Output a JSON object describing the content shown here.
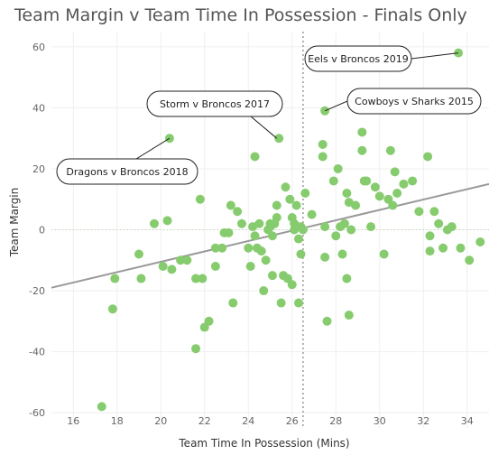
{
  "chart_data": {
    "type": "scatter",
    "title": "Team Margin v Team Time In Possession - Finals Only",
    "xlabel": "Team Time In Possession (Mins)",
    "ylabel": "Team Margin",
    "xlim": [
      15,
      35
    ],
    "ylim": [
      -65,
      65
    ],
    "xticks": [
      16,
      18,
      20,
      22,
      24,
      26,
      28,
      30,
      32,
      34
    ],
    "yticks": [
      -60,
      -40,
      -20,
      0,
      20,
      40,
      60
    ],
    "grid": true,
    "point_color": "#86cc6e",
    "trend_color": "#999999",
    "reference_line": {
      "x": 26.5,
      "style": "dotted",
      "color": "#999999"
    },
    "zero_line": {
      "y": 0,
      "style": "dotted",
      "color": "#b7d6a8"
    },
    "trendline": {
      "x": [
        15,
        35
      ],
      "y": [
        -19,
        15
      ]
    },
    "annotations": [
      {
        "label": "Eels v Broncos 2019",
        "x": 33.6,
        "y": 58
      },
      {
        "label": "Storm v Broncos 2017",
        "x": 25.3,
        "y": 30
      },
      {
        "label": "Cowboys v Sharks 2015",
        "x": 27.5,
        "y": 39
      },
      {
        "label": "Dragons v Broncos 2018",
        "x": 20.4,
        "y": 30
      }
    ],
    "points": [
      [
        17.3,
        -58
      ],
      [
        17.8,
        -26
      ],
      [
        17.9,
        -16
      ],
      [
        19.0,
        -8
      ],
      [
        19.1,
        -16
      ],
      [
        19.7,
        2
      ],
      [
        20.1,
        -12
      ],
      [
        20.3,
        3
      ],
      [
        20.5,
        -13
      ],
      [
        20.9,
        -10
      ],
      [
        21.2,
        -10
      ],
      [
        21.6,
        -16
      ],
      [
        21.6,
        -39
      ],
      [
        21.8,
        10
      ],
      [
        21.9,
        -16
      ],
      [
        22.0,
        -32
      ],
      [
        22.2,
        -30
      ],
      [
        22.5,
        -12
      ],
      [
        22.5,
        -6
      ],
      [
        22.8,
        -6
      ],
      [
        22.9,
        -1
      ],
      [
        23.1,
        -1
      ],
      [
        23.2,
        8
      ],
      [
        23.3,
        -24
      ],
      [
        23.5,
        6
      ],
      [
        23.7,
        2
      ],
      [
        24.0,
        -6
      ],
      [
        24.1,
        -12
      ],
      [
        24.2,
        1
      ],
      [
        24.3,
        24
      ],
      [
        24.3,
        -2
      ],
      [
        24.4,
        -6
      ],
      [
        24.5,
        2
      ],
      [
        24.6,
        -7
      ],
      [
        24.7,
        -20
      ],
      [
        24.8,
        -10
      ],
      [
        24.9,
        0
      ],
      [
        25.0,
        1
      ],
      [
        25.0,
        2
      ],
      [
        25.1,
        -2
      ],
      [
        25.1,
        -15
      ],
      [
        25.2,
        2
      ],
      [
        25.3,
        4
      ],
      [
        25.3,
        8
      ],
      [
        25.4,
        30
      ],
      [
        25.5,
        -24
      ],
      [
        25.6,
        -15
      ],
      [
        25.7,
        14
      ],
      [
        25.8,
        -16
      ],
      [
        25.9,
        10
      ],
      [
        26.0,
        4
      ],
      [
        26.0,
        -18
      ],
      [
        26.1,
        2
      ],
      [
        26.1,
        0
      ],
      [
        26.2,
        8
      ],
      [
        26.3,
        -3
      ],
      [
        26.3,
        -24
      ],
      [
        26.4,
        1
      ],
      [
        26.4,
        -8
      ],
      [
        26.5,
        0
      ],
      [
        26.6,
        12
      ],
      [
        26.9,
        5
      ],
      [
        27.4,
        28
      ],
      [
        27.4,
        24
      ],
      [
        27.5,
        1
      ],
      [
        27.5,
        -9
      ],
      [
        27.6,
        -30
      ],
      [
        27.9,
        16
      ],
      [
        28.0,
        -2
      ],
      [
        28.1,
        20
      ],
      [
        28.2,
        1
      ],
      [
        28.3,
        -8
      ],
      [
        28.4,
        2
      ],
      [
        28.5,
        -16
      ],
      [
        28.5,
        12
      ],
      [
        28.6,
        9
      ],
      [
        28.7,
        0
      ],
      [
        28.9,
        8
      ],
      [
        29.2,
        32
      ],
      [
        29.2,
        26
      ],
      [
        29.3,
        16
      ],
      [
        29.4,
        16
      ],
      [
        29.6,
        1
      ],
      [
        29.8,
        14
      ],
      [
        30.0,
        11
      ],
      [
        30.2,
        -8
      ],
      [
        30.4,
        10
      ],
      [
        30.5,
        26
      ],
      [
        30.6,
        8
      ],
      [
        30.7,
        19
      ],
      [
        30.8,
        12
      ],
      [
        31.1,
        15
      ],
      [
        31.5,
        16
      ],
      [
        31.8,
        6
      ],
      [
        32.2,
        24
      ],
      [
        32.3,
        -7
      ],
      [
        32.3,
        -2
      ],
      [
        32.5,
        6
      ],
      [
        32.7,
        2
      ],
      [
        32.9,
        -6
      ],
      [
        33.1,
        0
      ],
      [
        33.3,
        1
      ],
      [
        33.7,
        -6
      ],
      [
        34.1,
        -10
      ],
      [
        34.6,
        -4
      ],
      [
        28.6,
        -28
      ],
      [
        33.6,
        58
      ],
      [
        27.5,
        39
      ],
      [
        20.4,
        30
      ]
    ]
  }
}
